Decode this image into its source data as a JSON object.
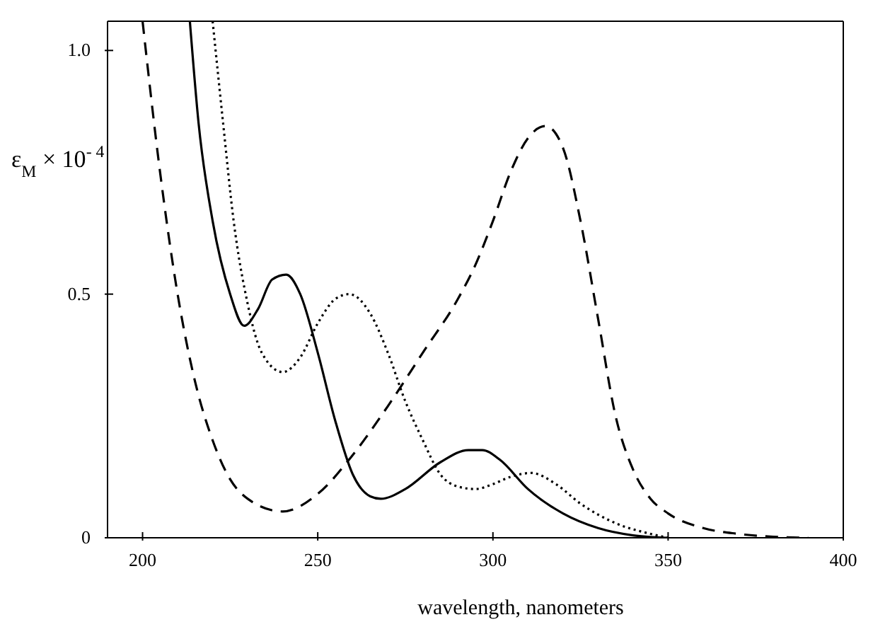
{
  "chart_data": {
    "type": "line",
    "xlabel": "wavelength, nanometers",
    "ylabel": "ε$_{M}$ × 10$^{- 4}$",
    "xlim": [
      190,
      400
    ],
    "xticks": [
      200,
      250,
      300,
      350,
      400
    ],
    "ylim": [
      0,
      1.06
    ],
    "yticks": [
      0,
      0.5,
      {
        "value": 1,
        "label": "1.0"
      }
    ],
    "marker": "none",
    "series": [
      {
        "color": "#000000",
        "line_style": "solid",
        "x": [
          213.5,
          216,
          220,
          225,
          229,
          233,
          237,
          241,
          245,
          250,
          255,
          260,
          265,
          268,
          275,
          285,
          293,
          297,
          302,
          310,
          320,
          330,
          340,
          350
        ],
        "values": [
          1.06,
          0.85,
          0.65,
          0.5,
          0.435,
          0.47,
          0.53,
          0.54,
          0.5,
          0.38,
          0.24,
          0.13,
          0.085,
          0.08,
          0.1,
          0.155,
          0.18,
          0.18,
          0.16,
          0.1,
          0.05,
          0.02,
          0.005,
          0
        ]
      },
      {
        "color": "#000000",
        "line_style": "dotted",
        "x": [
          220,
          223,
          226,
          230,
          234,
          240,
          245,
          250,
          255,
          259,
          265,
          270,
          275,
          280,
          285,
          290,
          295,
          300,
          305,
          311,
          318,
          325,
          335,
          345,
          350
        ],
        "values": [
          1.06,
          0.85,
          0.65,
          0.48,
          0.38,
          0.34,
          0.37,
          0.44,
          0.49,
          0.5,
          0.46,
          0.38,
          0.28,
          0.2,
          0.13,
          0.105,
          0.1,
          0.11,
          0.125,
          0.133,
          0.11,
          0.07,
          0.03,
          0.008,
          0
        ]
      },
      {
        "color": "#000000",
        "line_style": "dashed",
        "x": [
          200,
          205,
          210,
          215,
          220,
          225,
          230,
          240,
          250,
          260,
          270,
          280,
          290,
          295,
          300,
          305,
          310,
          315,
          320,
          325,
          330,
          335,
          340,
          345,
          350,
          360,
          370,
          380,
          390
        ],
        "values": [
          1.06,
          0.75,
          0.5,
          0.32,
          0.2,
          0.12,
          0.08,
          0.054,
          0.09,
          0.17,
          0.27,
          0.38,
          0.49,
          0.56,
          0.65,
          0.75,
          0.82,
          0.845,
          0.8,
          0.65,
          0.45,
          0.25,
          0.14,
          0.08,
          0.05,
          0.02,
          0.008,
          0.002,
          0
        ]
      }
    ]
  }
}
